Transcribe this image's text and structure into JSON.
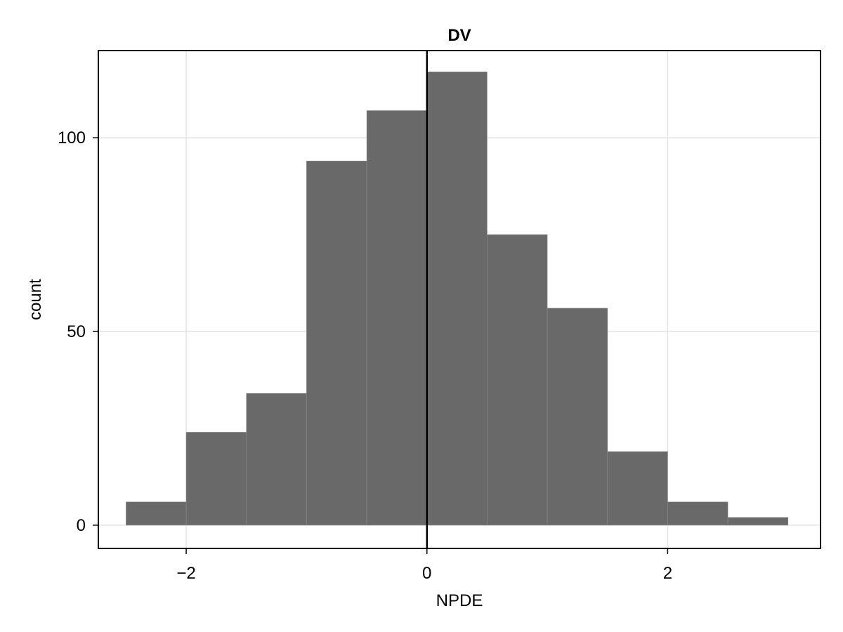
{
  "chart_data": {
    "type": "bar",
    "title": "DV",
    "xlabel": "NPDE",
    "ylabel": "count",
    "bin_edges": [
      -2.5,
      -2.0,
      -1.5,
      -1.0,
      -0.5,
      0.0,
      0.5,
      1.0,
      1.5,
      2.0,
      2.5,
      3.0
    ],
    "values": [
      6,
      24,
      34,
      94,
      107,
      117,
      75,
      56,
      19,
      6,
      2
    ],
    "xlim": [
      -2.73,
      3.27
    ],
    "ylim": [
      -6,
      122.5
    ],
    "xticks": [
      -2,
      0,
      2
    ],
    "xtick_labels": [
      "−2",
      "0",
      "2"
    ],
    "yticks": [
      0,
      50,
      100
    ],
    "ytick_labels": [
      "0",
      "50",
      "100"
    ],
    "reference_line_x": 0,
    "grid": true,
    "colors": {
      "bar_fill": "#696969",
      "bar_edge": "#8a8a8a",
      "grid": "#e4e4e4",
      "frame": "#000000",
      "reference_line": "#000000"
    }
  }
}
